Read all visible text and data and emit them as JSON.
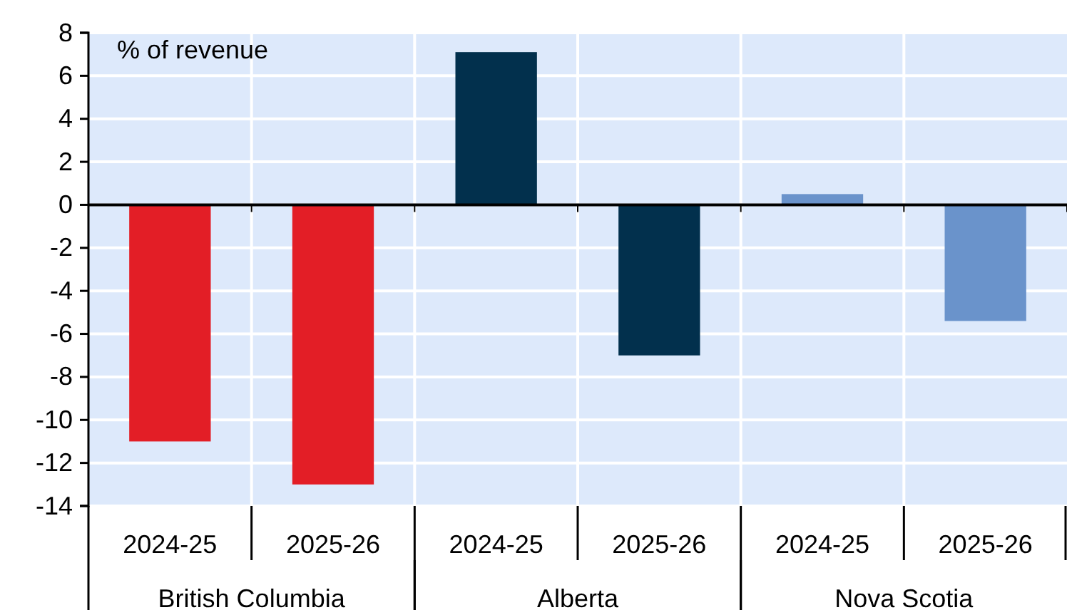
{
  "chart_data": {
    "type": "bar",
    "ylabel": "% of revenue",
    "categories": [
      "2024-25",
      "2025-26",
      "2024-25",
      "2025-26",
      "2024-25",
      "2025-26"
    ],
    "values": [
      -11.0,
      -13.0,
      7.1,
      -7.0,
      0.5,
      -5.4
    ],
    "colors": [
      "#e31e26",
      "#e31e26",
      "#02304d",
      "#02304d",
      "#6a93cb",
      "#6a93cb"
    ],
    "annotations": [
      "British Columbia",
      "Alberta",
      "Nova Scotia"
    ],
    "ylim": [
      -14,
      8
    ],
    "yticks": [
      -14,
      -12,
      -10,
      -8,
      -6,
      -4,
      -2,
      0,
      2,
      4,
      6,
      8
    ],
    "grid": true
  }
}
